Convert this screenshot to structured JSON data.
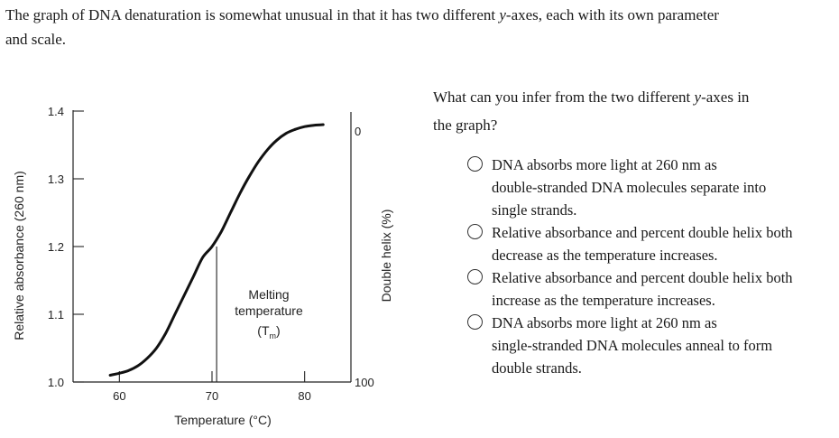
{
  "intro": {
    "line1": "The graph of DNA denaturation is somewhat unusual in that it has two different ",
    "italic": "y",
    "line1_end": "-axes, each with its own parameter",
    "line2": "and scale."
  },
  "question": {
    "part1": "What can you infer from the two different ",
    "italic": "y",
    "part2": "-axes in",
    "line2": "the graph?"
  },
  "options": [
    {
      "line1": "DNA absorbs more light at 260 nm as",
      "line2": "double-stranded DNA molecules separate into",
      "line3": "single strands."
    },
    {
      "line1": "Relative absorbance and percent double helix both",
      "line2": "decrease as the temperature increases."
    },
    {
      "line1": "Relative absorbance and percent double helix both",
      "line2": "increase as the temperature increases."
    },
    {
      "line1": "DNA absorbs more light at 260 nm as",
      "line2": "single-stranded DNA molecules anneal to form",
      "line3": "double strands."
    }
  ],
  "chart_data": {
    "type": "line",
    "xlabel": "Temperature (°C)",
    "ylabel_left": "Relative absorbance (260 nm)",
    "ylabel_right": "Double helix (%)",
    "xlim": [
      55,
      85
    ],
    "ylim": [
      1.0,
      1.4
    ],
    "x_ticks": [
      60,
      70,
      80
    ],
    "y_ticks": [
      1.0,
      1.1,
      1.2,
      1.3,
      1.4
    ],
    "right_ticks": [
      "0",
      "100"
    ],
    "annotation": {
      "line1": "Melting",
      "line2": "temperature",
      "line3": "(T",
      "sub": "m",
      "line3_end": ")"
    },
    "tm_x": 70.5,
    "series": [
      {
        "x": [
          59,
          60,
          61,
          62,
          63,
          64,
          65,
          66,
          67,
          68,
          69,
          70,
          71,
          72,
          73,
          74,
          75,
          76,
          77,
          78,
          79,
          80,
          81,
          82
        ],
        "values": [
          1.01,
          1.013,
          1.017,
          1.024,
          1.035,
          1.05,
          1.072,
          1.1,
          1.128,
          1.156,
          1.184,
          1.2,
          1.222,
          1.25,
          1.278,
          1.303,
          1.325,
          1.343,
          1.357,
          1.367,
          1.373,
          1.377,
          1.379,
          1.38
        ]
      }
    ]
  }
}
